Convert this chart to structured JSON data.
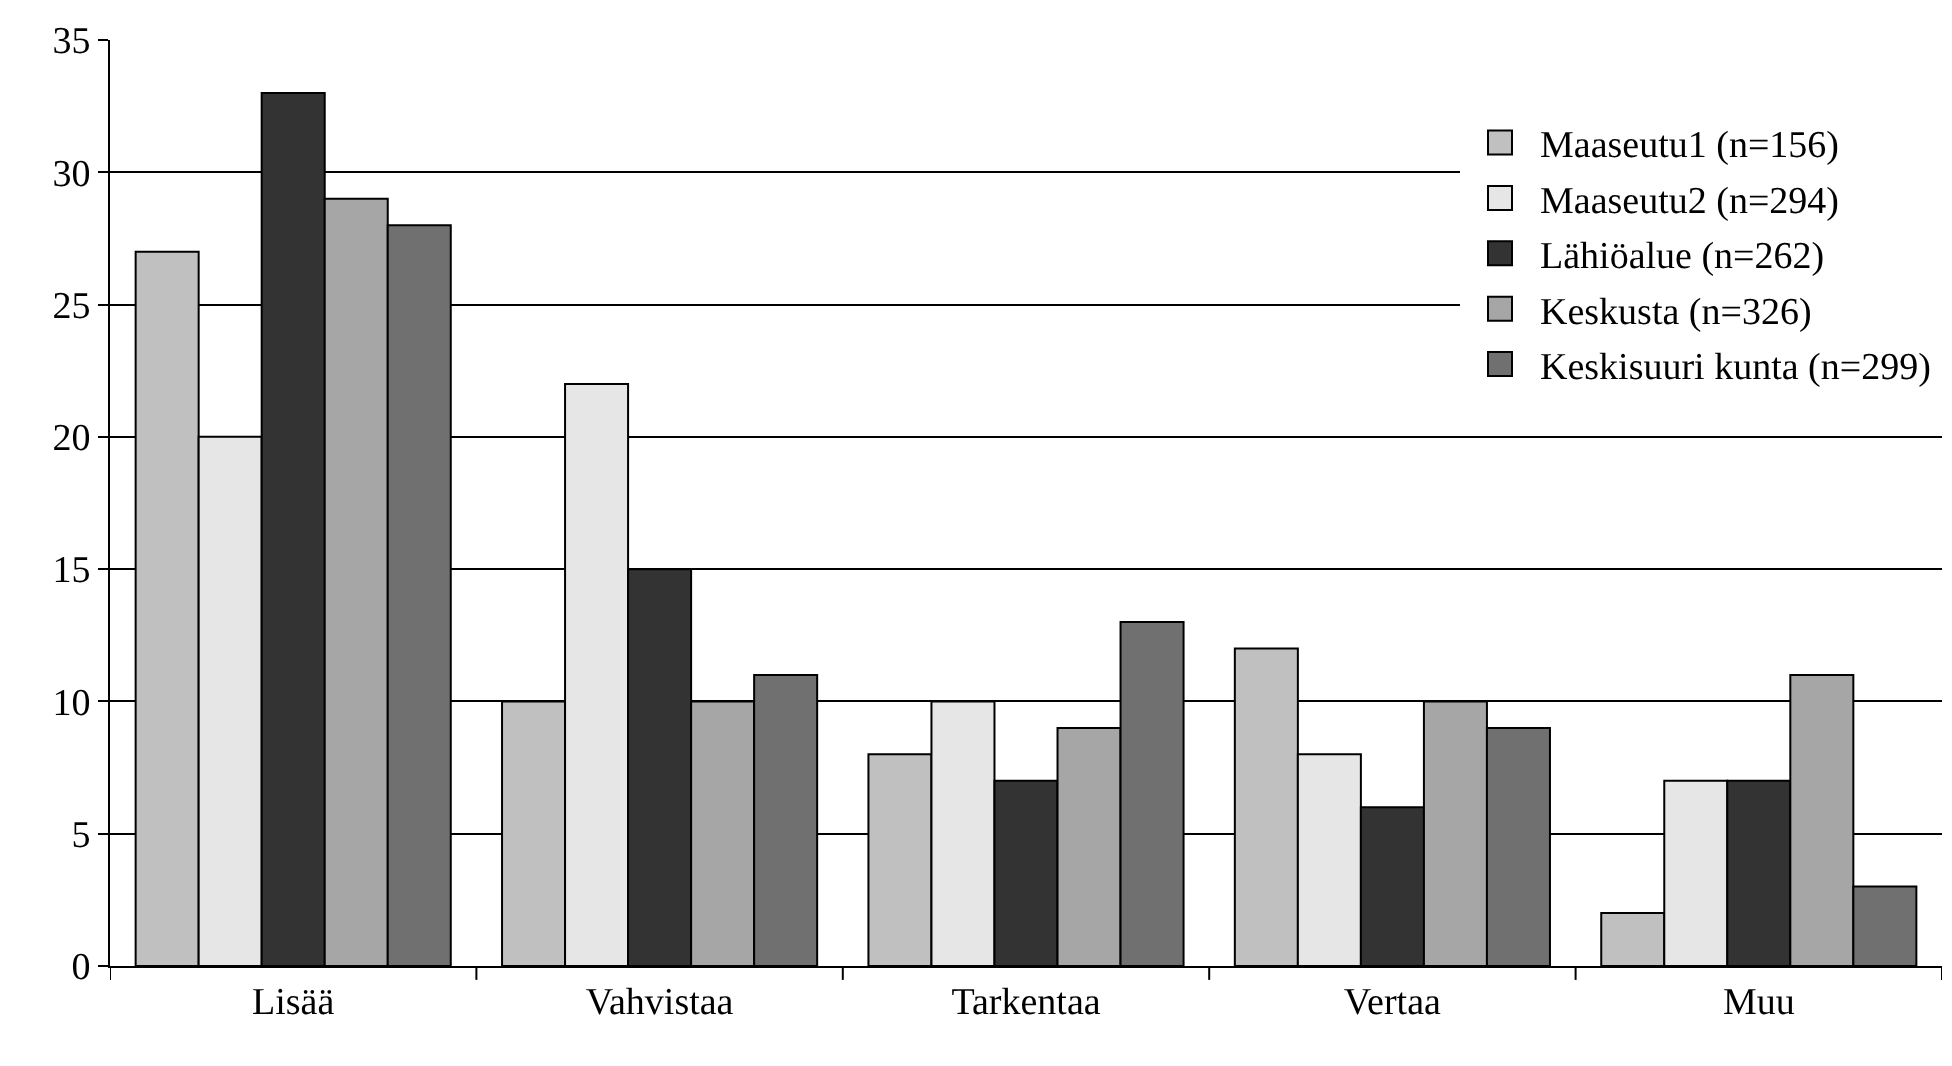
{
  "chart_data": {
    "type": "bar",
    "categories": [
      "Lisää",
      "Vahvistaa",
      "Tarkentaa",
      "Vertaa",
      "Muu"
    ],
    "series": [
      {
        "name": "Maaseutu1 (n=156)",
        "color": "#c0c0c0",
        "values": [
          27,
          10,
          8,
          12,
          2
        ]
      },
      {
        "name": "Maaseutu2 (n=294)",
        "color": "#e6e6e6",
        "values": [
          20,
          22,
          10,
          8,
          7
        ]
      },
      {
        "name": "Lähiöalue (n=262)",
        "color": "#333333",
        "values": [
          33,
          15,
          7,
          6,
          7
        ]
      },
      {
        "name": "Keskusta (n=326)",
        "color": "#a6a6a6",
        "values": [
          29,
          10,
          9,
          10,
          11
        ]
      },
      {
        "name": "Keskisuuri kunta (n=299)",
        "color": "#707070",
        "values": [
          28,
          11,
          13,
          9,
          3
        ]
      }
    ],
    "ylim": [
      0,
      35
    ],
    "yticks": [
      0,
      5,
      10,
      15,
      20,
      25,
      30,
      35
    ],
    "grid": "y",
    "legend": "top right"
  }
}
